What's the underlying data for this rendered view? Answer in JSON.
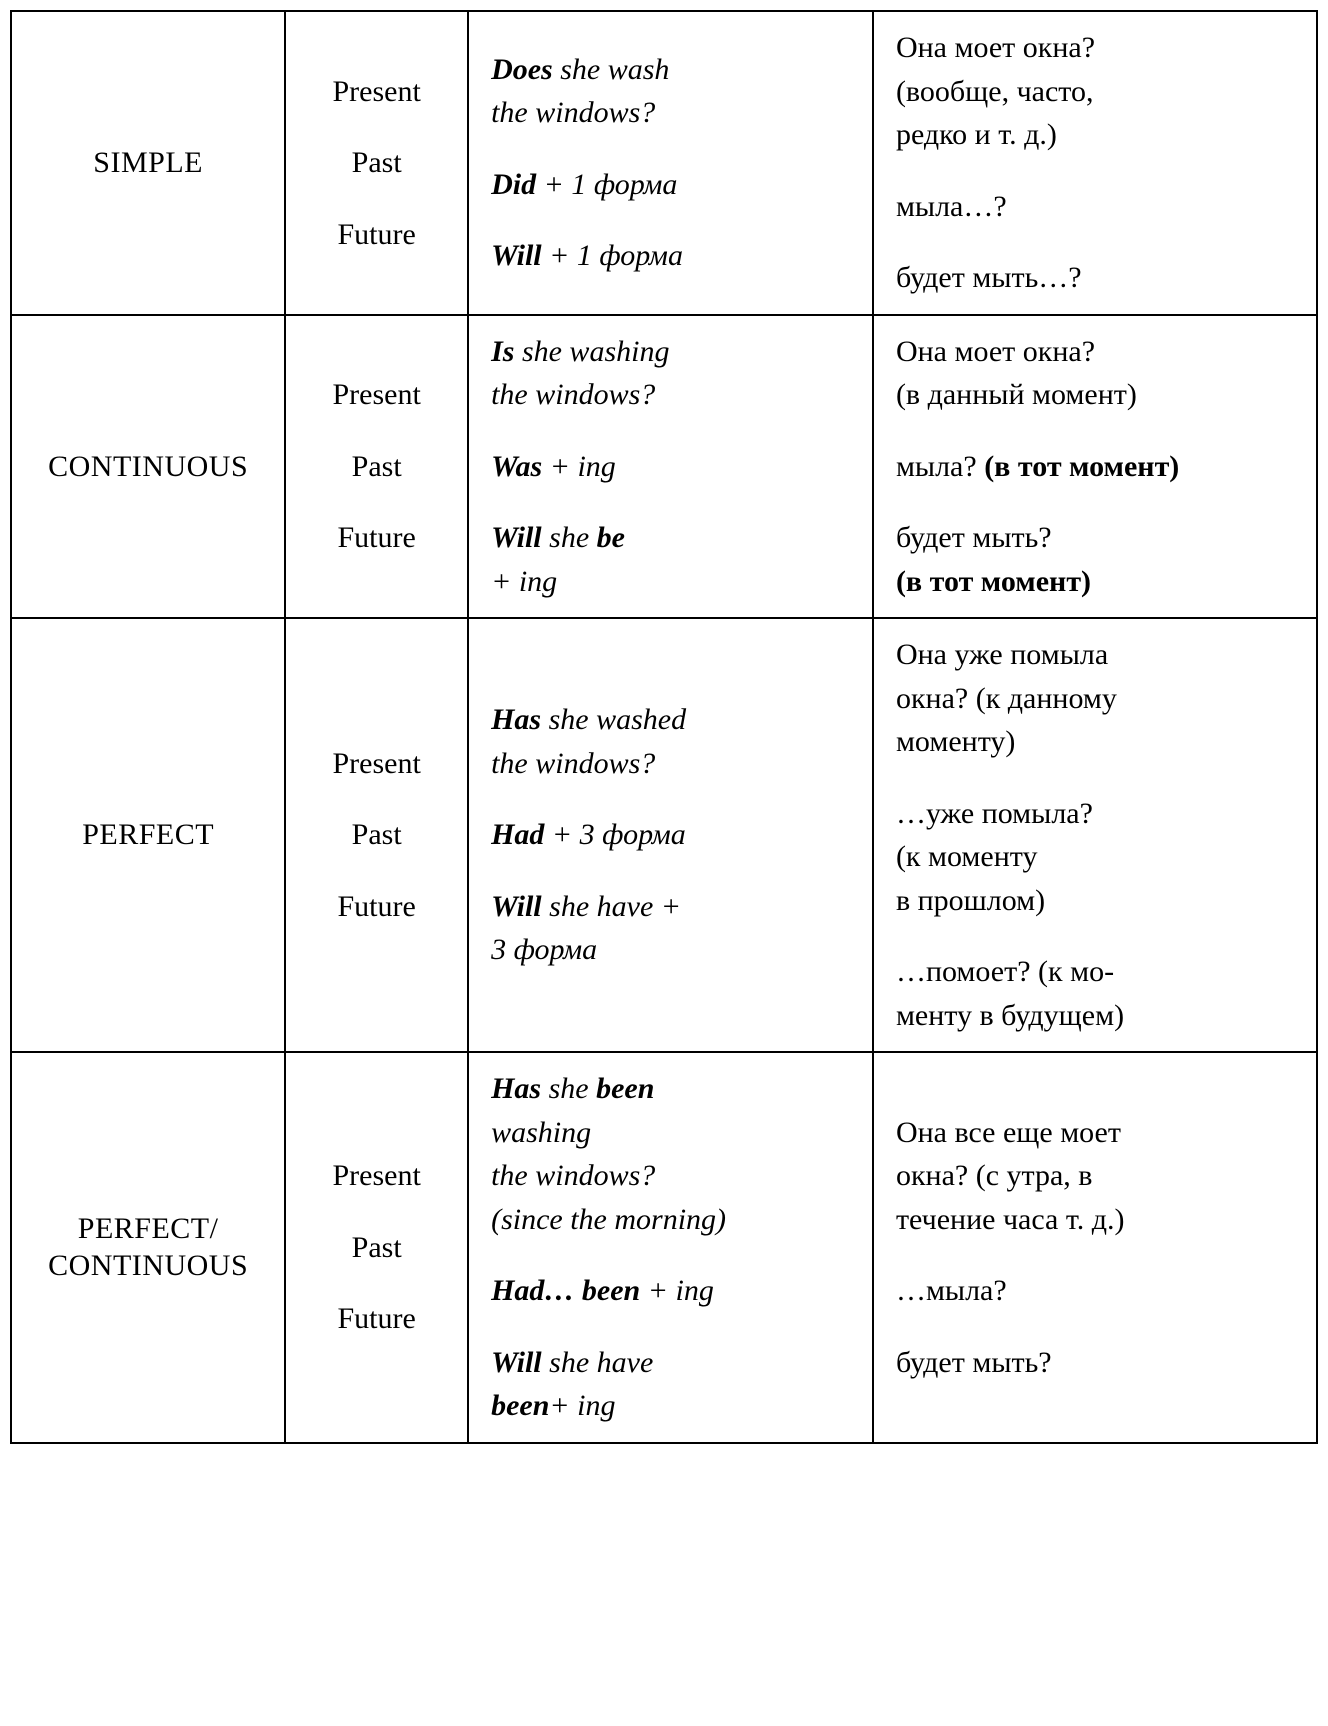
{
  "table": {
    "border_color": "#000000",
    "background_color": "#ffffff",
    "text_color": "#000000",
    "font_family": "Times New Roman, serif",
    "base_fontsize_pt": 22,
    "column_widths_pct": [
      21,
      14,
      31,
      34
    ],
    "aspects": [
      {
        "name": "SIMPLE",
        "rows": [
          {
            "tense": "Present",
            "english": [
              {
                "t": "Does",
                "style": "bi"
              },
              {
                "t": " she wash",
                "style": "it"
              },
              {
                "t": "\n",
                "style": ""
              },
              {
                "t": "the windows?",
                "style": "it"
              }
            ],
            "russian": [
              {
                "t": "Она моет окна?",
                "style": ""
              },
              {
                "t": "\n",
                "style": ""
              },
              {
                "t": "(вообще, часто,",
                "style": ""
              },
              {
                "t": "\n",
                "style": ""
              },
              {
                "t": "редко и т. д.)",
                "style": ""
              }
            ]
          },
          {
            "tense": "Past",
            "english": [
              {
                "t": "Did",
                "style": "bi"
              },
              {
                "t": " + 1 форма",
                "style": "it"
              }
            ],
            "russian": [
              {
                "t": "мыла…?",
                "style": ""
              }
            ]
          },
          {
            "tense": "Future",
            "english": [
              {
                "t": "Will",
                "style": "bi"
              },
              {
                "t": " + 1 форма",
                "style": "it"
              }
            ],
            "russian": [
              {
                "t": "будет мыть…?",
                "style": ""
              }
            ]
          }
        ]
      },
      {
        "name": "CONTINUOUS",
        "rows": [
          {
            "tense": "Present",
            "english": [
              {
                "t": "Is",
                "style": "bi"
              },
              {
                "t": " she washing",
                "style": "it"
              },
              {
                "t": "\n",
                "style": ""
              },
              {
                "t": "the windows?",
                "style": "it"
              }
            ],
            "russian": [
              {
                "t": "Она моет окна?",
                "style": ""
              },
              {
                "t": "\n",
                "style": ""
              },
              {
                "t": "(в данный момент)",
                "style": ""
              }
            ]
          },
          {
            "tense": "Past",
            "english": [
              {
                "t": "Was",
                "style": "bi"
              },
              {
                "t": " + ing",
                "style": "it"
              }
            ],
            "russian": [
              {
                "t": "мыла? ",
                "style": ""
              },
              {
                "t": "(в тот момент)",
                "style": "b"
              }
            ]
          },
          {
            "tense": "Future",
            "english": [
              {
                "t": "Will",
                "style": "bi"
              },
              {
                "t": " she ",
                "style": "it"
              },
              {
                "t": "be",
                "style": "bi"
              },
              {
                "t": "\n",
                "style": ""
              },
              {
                "t": "+ ing",
                "style": "it"
              }
            ],
            "russian": [
              {
                "t": "будет мыть?",
                "style": ""
              },
              {
                "t": "\n",
                "style": ""
              },
              {
                "t": "(в тот момент)",
                "style": "b"
              }
            ]
          }
        ]
      },
      {
        "name": "PERFECT",
        "rows": [
          {
            "tense": "Present",
            "english": [
              {
                "t": "Has",
                "style": "bi"
              },
              {
                "t": " she washed",
                "style": "it"
              },
              {
                "t": "\n",
                "style": ""
              },
              {
                "t": "the windows?",
                "style": "it"
              }
            ],
            "russian": [
              {
                "t": "Она уже помыла",
                "style": ""
              },
              {
                "t": "\n",
                "style": ""
              },
              {
                "t": "окна? (к данному",
                "style": ""
              },
              {
                "t": "\n",
                "style": ""
              },
              {
                "t": "моменту)",
                "style": ""
              }
            ]
          },
          {
            "tense": "Past",
            "english": [
              {
                "t": "Had",
                "style": "bi"
              },
              {
                "t": " + 3 форма",
                "style": "it"
              }
            ],
            "russian": [
              {
                "t": "…уже помыла?",
                "style": ""
              },
              {
                "t": "\n",
                "style": ""
              },
              {
                "t": "(к моменту",
                "style": ""
              },
              {
                "t": "\n",
                "style": ""
              },
              {
                "t": "в прошлом)",
                "style": ""
              }
            ]
          },
          {
            "tense": "Future",
            "english": [
              {
                "t": "Will",
                "style": "bi"
              },
              {
                "t": " she have +",
                "style": "it"
              },
              {
                "t": "\n",
                "style": ""
              },
              {
                "t": "3 форма",
                "style": "it"
              }
            ],
            "russian": [
              {
                "t": "…помоет? (к мо-",
                "style": ""
              },
              {
                "t": "\n",
                "style": ""
              },
              {
                "t": "менту в будущем)",
                "style": ""
              }
            ]
          }
        ]
      },
      {
        "name": "PERFECT/\nCONTINUOUS",
        "rows": [
          {
            "tense": "Present",
            "english": [
              {
                "t": "Has",
                "style": "bi"
              },
              {
                "t": " she ",
                "style": "it"
              },
              {
                "t": "been",
                "style": "bi"
              },
              {
                "t": "\n",
                "style": ""
              },
              {
                "t": "washing",
                "style": "it"
              },
              {
                "t": "\n",
                "style": ""
              },
              {
                "t": "the windows?",
                "style": "it"
              },
              {
                "t": "\n",
                "style": ""
              },
              {
                "t": "(since the morning)",
                "style": "it"
              }
            ],
            "russian": [
              {
                "t": "Она все еще моет",
                "style": ""
              },
              {
                "t": "\n",
                "style": ""
              },
              {
                "t": "окна? (с утра, в",
                "style": ""
              },
              {
                "t": "\n",
                "style": ""
              },
              {
                "t": "течение часа т. д.)",
                "style": ""
              }
            ]
          },
          {
            "tense": "Past",
            "english": [
              {
                "t": "Had… been",
                "style": "bi"
              },
              {
                "t": " + ing",
                "style": "it"
              }
            ],
            "russian": [
              {
                "t": "…мыла?",
                "style": ""
              }
            ]
          },
          {
            "tense": "Future",
            "english": [
              {
                "t": "Will",
                "style": "bi"
              },
              {
                "t": " she have",
                "style": "it"
              },
              {
                "t": "\n",
                "style": ""
              },
              {
                "t": "been",
                "style": "bi"
              },
              {
                "t": "+ ing",
                "style": "it"
              }
            ],
            "russian": [
              {
                "t": "будет мыть?",
                "style": ""
              }
            ]
          }
        ]
      }
    ]
  }
}
